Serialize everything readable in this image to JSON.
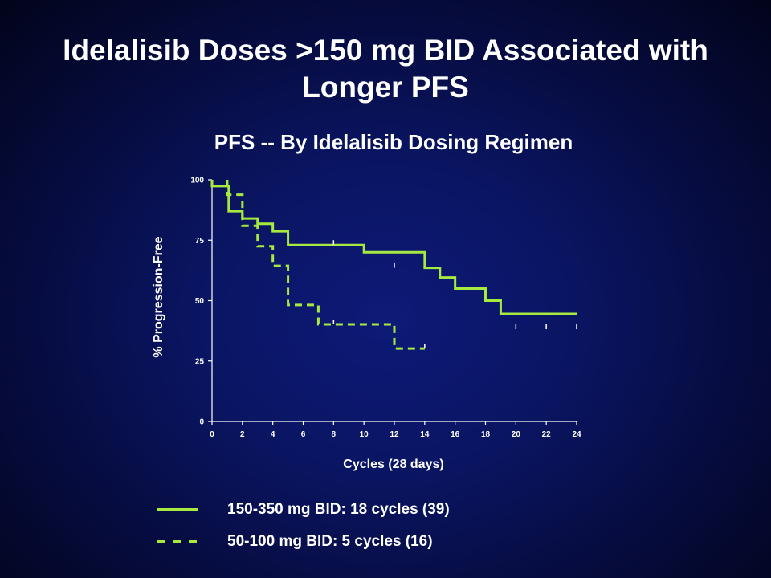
{
  "slide": {
    "title": "Idelalisib Doses >150 mg BID Associated with Longer PFS"
  },
  "chart_data": {
    "type": "line",
    "title": "PFS -- By Idelalisib Dosing Regimen",
    "xlabel": "Cycles (28 days)",
    "ylabel": "% Progression-Free",
    "xlim": [
      0,
      24
    ],
    "ylim": [
      0,
      100
    ],
    "xticks": [
      0,
      2,
      4,
      6,
      8,
      10,
      12,
      14,
      16,
      18,
      20,
      22,
      24
    ],
    "yticks": [
      0,
      25,
      50,
      75,
      100
    ],
    "grid": false,
    "line_color": "#a6ea40",
    "series": [
      {
        "name": "150-350 mg BID: 18 cycles (39)",
        "style": "solid",
        "step_x": [
          0,
          1.1,
          2,
          3,
          4,
          5,
          10,
          14,
          15,
          16,
          18,
          19,
          24
        ],
        "step_y": [
          100,
          97.4,
          87,
          84,
          81.8,
          78.7,
          73,
          70,
          63.6,
          59.6,
          55,
          50,
          44.5,
          38.2
        ],
        "censor_x": [
          8,
          12,
          20,
          22,
          24
        ],
        "censor_y": [
          73,
          63.6,
          38.2,
          38.2,
          38.2
        ]
      },
      {
        "name": "50-100 mg BID: 5 cycles (16)",
        "style": "dashed",
        "step_x": [
          1,
          2,
          3,
          4,
          5,
          7,
          12
        ],
        "step_y": [
          100,
          93.8,
          81,
          72.5,
          64.4,
          48.2,
          40.2,
          30.2
        ],
        "x_end": 14,
        "censor_x": [
          8,
          14
        ],
        "censor_y": [
          40.2,
          30.2
        ]
      }
    ]
  },
  "legend": {
    "items": [
      {
        "label": "150-350 mg BID: 18 cycles (39)",
        "style": "solid"
      },
      {
        "label": "50-100 mg BID: 5 cycles (16)",
        "style": "dashed"
      }
    ]
  }
}
